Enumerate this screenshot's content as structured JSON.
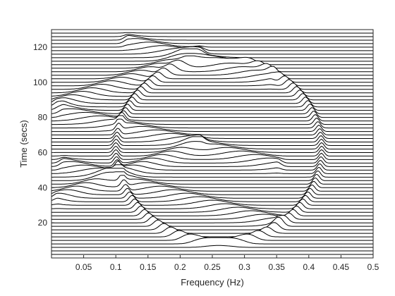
{
  "chart_data": {
    "type": "line",
    "subtype": "waterfall",
    "title": "",
    "xlabel": "Frequency (Hz)",
    "ylabel": "Time (secs)",
    "xlim": [
      0,
      0.5
    ],
    "ylim": [
      0,
      130
    ],
    "xticks": [
      0.05,
      0.1,
      0.15,
      0.2,
      0.25,
      0.3,
      0.35,
      0.4,
      0.45,
      0.5
    ],
    "xtick_labels": [
      "0.05",
      "0.1",
      "0.15",
      "0.2",
      "0.25",
      "0.3",
      "0.35",
      "0.4",
      "0.45",
      "0.5"
    ],
    "yticks": [
      20,
      40,
      60,
      80,
      100,
      120
    ],
    "ytick_labels": [
      "20",
      "40",
      "60",
      "80",
      "100",
      "120"
    ],
    "grid": false,
    "line_color": "#000000",
    "traces": {
      "count": 64,
      "time_start": 2,
      "time_step": 2,
      "amplitude": 9,
      "features": [
        {
          "name": "bowl",
          "type": "circle",
          "center_frequency": 0.26,
          "center_time": 60,
          "frequency_radius": 0.16,
          "time_radius": 52
        },
        {
          "name": "upper-chirp",
          "type": "line",
          "from": [
            0.01,
            87
          ],
          "to": [
            0.23,
            116
          ],
          "time_window": [
            80,
            123
          ]
        },
        {
          "name": "upper-ridge",
          "type": "line",
          "from": [
            0.12,
            123
          ],
          "to": [
            0.34,
            102
          ],
          "time_window": [
            95,
            129
          ]
        },
        {
          "name": "lower-chirp",
          "type": "line",
          "from": [
            0.01,
            34
          ],
          "to": [
            0.23,
            64
          ],
          "time_window": [
            28,
            72
          ]
        },
        {
          "name": "middle-ridge",
          "type": "line",
          "from": [
            0.02,
            83
          ],
          "to": [
            0.35,
            53
          ],
          "time_window": [
            48,
            90
          ]
        },
        {
          "name": "lower-ridge",
          "type": "line",
          "from": [
            0.02,
            53
          ],
          "to": [
            0.35,
            20
          ],
          "time_window": [
            12,
            60
          ]
        }
      ]
    }
  }
}
